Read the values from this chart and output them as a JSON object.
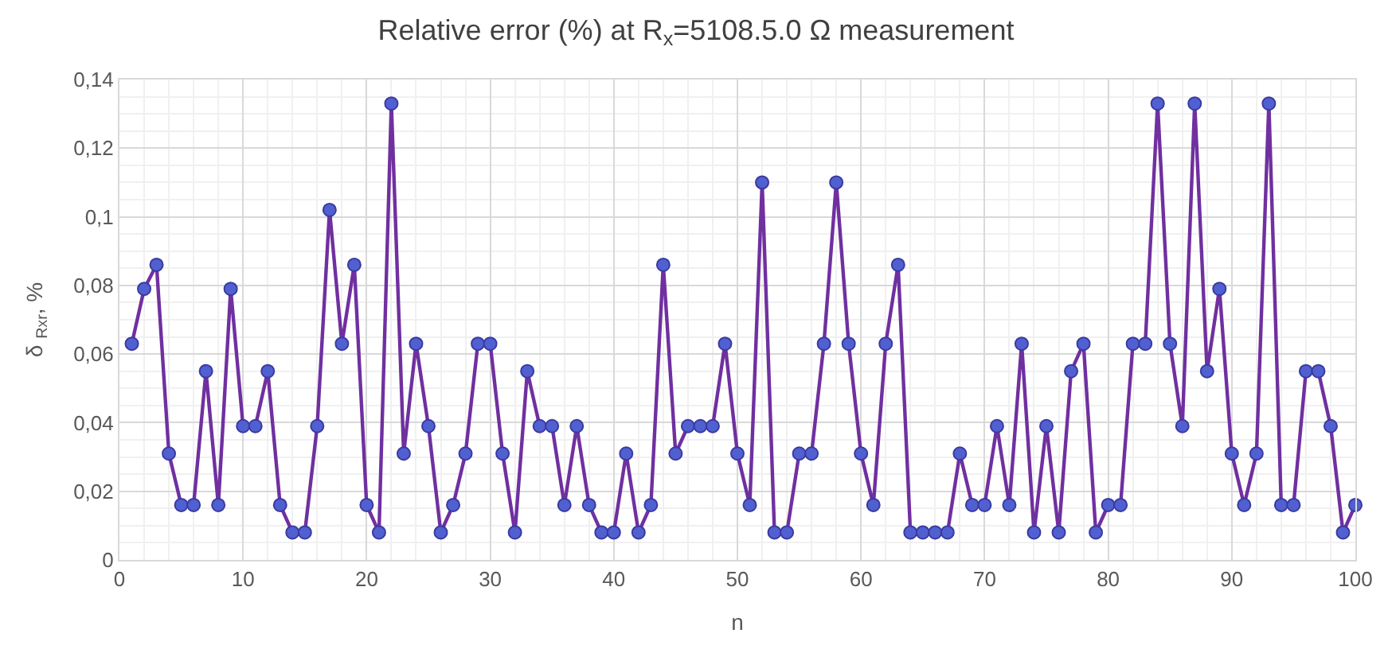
{
  "chart_data": {
    "type": "line",
    "title": "Relative error (%) at R$_{x}$=5108.5.0 Ω measurement",
    "xlabel": "n",
    "ylabel": "δ $_{Rxr}$, %",
    "x": [
      1,
      2,
      3,
      4,
      5,
      6,
      7,
      8,
      9,
      10,
      11,
      12,
      13,
      14,
      15,
      16,
      17,
      18,
      19,
      20,
      21,
      22,
      23,
      24,
      25,
      26,
      27,
      28,
      29,
      30,
      31,
      32,
      33,
      34,
      35,
      36,
      37,
      38,
      39,
      40,
      41,
      42,
      43,
      44,
      45,
      46,
      47,
      48,
      49,
      50,
      51,
      52,
      53,
      54,
      55,
      56,
      57,
      58,
      59,
      60,
      61,
      62,
      63,
      64,
      65,
      66,
      67,
      68,
      69,
      70,
      71,
      72,
      73,
      74,
      75,
      76,
      77,
      78,
      79,
      80,
      81,
      82,
      83,
      84,
      85,
      86,
      87,
      88,
      89,
      90,
      91,
      92,
      93,
      94,
      95,
      96,
      97,
      98,
      99,
      100
    ],
    "series": [
      {
        "color": "#7030a0",
        "values": [
          0.063,
          0.079,
          0.086,
          0.031,
          0.016,
          0.016,
          0.055,
          0.016,
          0.079,
          0.039,
          0.039,
          0.055,
          0.016,
          0.008,
          0.008,
          0.039,
          0.102,
          0.063,
          0.086,
          0.016,
          0.008,
          0.133,
          0.031,
          0.063,
          0.039,
          0.008,
          0.016,
          0.031,
          0.063,
          0.063,
          0.031,
          0.008,
          0.055,
          0.039,
          0.039,
          0.016,
          0.039,
          0.016,
          0.008,
          0.008,
          0.031,
          0.008,
          0.016,
          0.086,
          0.031,
          0.039,
          0.039,
          0.039,
          0.063,
          0.031,
          0.016,
          0.11,
          0.008,
          0.008,
          0.031,
          0.031,
          0.063,
          0.11,
          0.063,
          0.031,
          0.016,
          0.063,
          0.086,
          0.008,
          0.008,
          0.008,
          0.008,
          0.031,
          0.016,
          0.016,
          0.039,
          0.016,
          0.063,
          0.008,
          0.039,
          0.008,
          0.055,
          0.063,
          0.008,
          0.016,
          0.016,
          0.063,
          0.063,
          0.133,
          0.063,
          0.039,
          0.133,
          0.055,
          0.079,
          0.031,
          0.016,
          0.031,
          0.133,
          0.016,
          0.016,
          0.055,
          0.055,
          0.039,
          0.008,
          0.016
        ]
      }
    ],
    "xlim": [
      0,
      100
    ],
    "xticks": [
      0,
      10,
      20,
      30,
      40,
      50,
      60,
      70,
      80,
      90,
      100
    ],
    "ylim": [
      0,
      0.14
    ],
    "yticks": [
      0,
      {
        "value": 0.02,
        "label": "0,02"
      },
      {
        "value": 0.04,
        "label": "0,04"
      },
      {
        "value": 0.06,
        "label": "0,06"
      },
      {
        "value": 0.08,
        "label": "0,08"
      },
      {
        "value": 0.1,
        "label": "0,1"
      },
      {
        "value": 0.12,
        "label": "0,12"
      },
      {
        "value": 0.14,
        "label": "0,14"
      }
    ],
    "grid": true,
    "marker": "circle",
    "line_style": "solid"
  }
}
